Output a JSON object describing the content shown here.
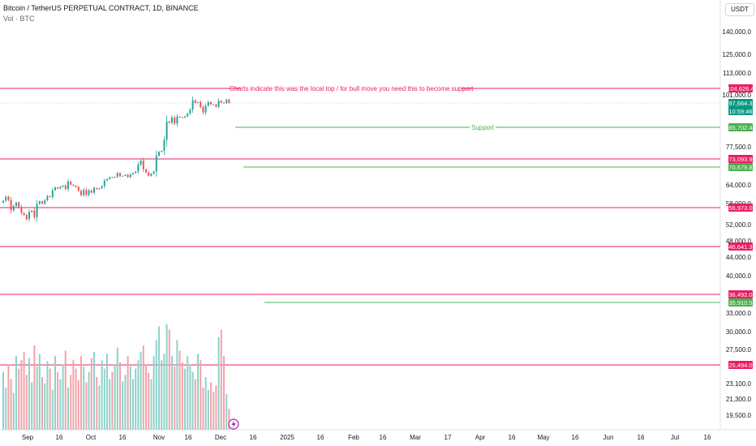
{
  "header": {
    "title": "Bitcoin / TetherUS PERPETUAL CONTRACT, 1D, BINANCE",
    "volume_label": "Vol · BTC"
  },
  "currency_button": "USDT",
  "colors": {
    "up": "#26a69a",
    "down": "#ef5350",
    "vol_up": "#8fd2ca",
    "vol_down": "#f4a3a8",
    "resistance": "#e91e63",
    "support": "#4caf50",
    "current": "#089981",
    "axis_text": "#131722"
  },
  "chart_data": {
    "type": "candlestick",
    "x_axis_labels": [
      "Sep",
      "16",
      "Oct",
      "16",
      "Nov",
      "16",
      "Dec",
      "16",
      "2025",
      "16",
      "Feb",
      "16",
      "Mar",
      "17",
      "Apr",
      "16",
      "May",
      "16",
      "Jun",
      "16",
      "Jul",
      "16"
    ],
    "y_axis_labels": [
      "140,000.0",
      "125,000.0",
      "113,000.0",
      "101,000.0",
      "77,500.0",
      "64,000.0",
      "58,000.0",
      "52,000.0",
      "48,000.0",
      "44,000.0",
      "40,000.0",
      "33,000.0",
      "30,000.0",
      "27,500.0",
      "23,100.0",
      "21,300.0",
      "19,500.0"
    ],
    "price_tags": [
      {
        "value": "104,626.4",
        "kind": "resistance"
      },
      {
        "value": "97,664.3",
        "kind": "current"
      },
      {
        "value": "10:59:46",
        "kind": "countdown"
      },
      {
        "value": "85,702.4",
        "kind": "support"
      },
      {
        "value": "73,093.9",
        "kind": "resistance"
      },
      {
        "value": "70,679.8",
        "kind": "support"
      },
      {
        "value": "56,973.0",
        "kind": "resistance"
      },
      {
        "value": "46,641.3",
        "kind": "resistance"
      },
      {
        "value": "36,492.0",
        "kind": "resistance"
      },
      {
        "value": "35,910.5",
        "kind": "support"
      },
      {
        "value": "25,494.0",
        "kind": "resistance"
      }
    ],
    "annotations": [
      {
        "text": "Charts indicate this was the local top / for bull move you need this to become support",
        "level": 104626.4
      },
      {
        "text": "Support",
        "level": 85702.4
      }
    ],
    "close_series": [
      58900,
      60200,
      59100,
      56200,
      57400,
      58300,
      57100,
      55400,
      54800,
      53600,
      55700,
      56100,
      54200,
      57900,
      58700,
      58000,
      59100,
      60400,
      60100,
      62300,
      63200,
      62800,
      63400,
      63800,
      62700,
      65200,
      64100,
      63700,
      63300,
      62100,
      60700,
      62400,
      60800,
      62200,
      61500,
      63000,
      62600,
      62900,
      63600,
      65600,
      66200,
      66900,
      66700,
      67000,
      68400,
      67300,
      67400,
      67800,
      66900,
      67900,
      68400,
      69000,
      71400,
      72600,
      69800,
      68700,
      67400,
      68200,
      69000,
      74300,
      75600,
      76000,
      80400,
      88600,
      87900,
      90500,
      87500,
      91000,
      90600,
      90500,
      91100,
      92400,
      94400,
      98800,
      97700,
      98000,
      95700,
      93000,
      96300,
      98000,
      97000,
      96900,
      95800,
      98600,
      97800,
      97600,
      99000,
      97664.3
    ],
    "volume_series": [
      55,
      40,
      62,
      48,
      35,
      70,
      58,
      66,
      74,
      52,
      68,
      45,
      80,
      60,
      72,
      50,
      44,
      65,
      58,
      38,
      70,
      55,
      48,
      62,
      75,
      40,
      52,
      66,
      58,
      47,
      70,
      60,
      45,
      55,
      68,
      74,
      50,
      42,
      66,
      58,
      72,
      48,
      55,
      62,
      78,
      64,
      46,
      52,
      70,
      60,
      48,
      58,
      66,
      74,
      80,
      62,
      54,
      48,
      70,
      85,
      98,
      66,
      72,
      100,
      95,
      70,
      60,
      85,
      75,
      64,
      58,
      70,
      62,
      55,
      48,
      72,
      66,
      40,
      50,
      38,
      45,
      36,
      42,
      88,
      95,
      70,
      34,
      20
    ]
  }
}
